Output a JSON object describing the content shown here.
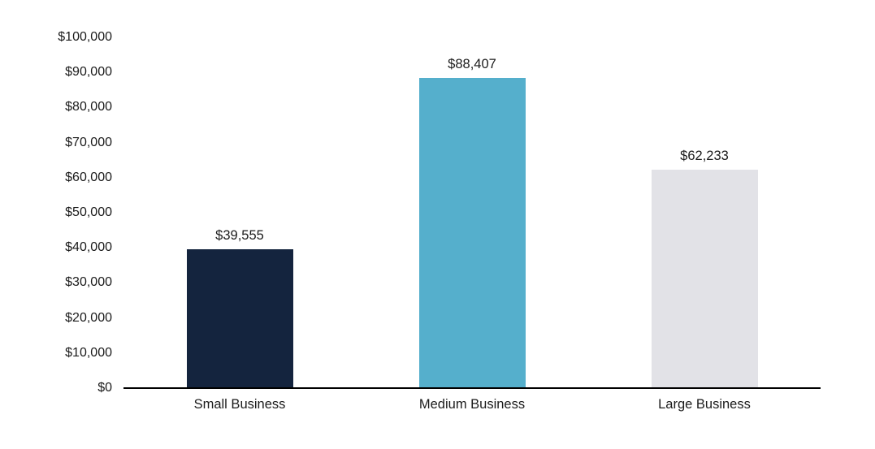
{
  "chart_data": {
    "type": "bar",
    "title": "",
    "xlabel": "",
    "ylabel": "",
    "categories": [
      "Small Business",
      "Medium Business",
      "Large Business"
    ],
    "values": [
      39555,
      88407,
      62233
    ],
    "value_labels": [
      "$39,555",
      "$88,407",
      "$62,233"
    ],
    "bar_colors": [
      "#14243E",
      "#55AFCC",
      "#E2E2E7"
    ],
    "ylim": [
      0,
      100000
    ],
    "yticks": [
      {
        "value": 0,
        "label": "$0"
      },
      {
        "value": 10000,
        "label": "$10,000"
      },
      {
        "value": 20000,
        "label": "$20,000"
      },
      {
        "value": 30000,
        "label": "$30,000"
      },
      {
        "value": 40000,
        "label": "$40,000"
      },
      {
        "value": 50000,
        "label": "$50,000"
      },
      {
        "value": 60000,
        "label": "$60,000"
      },
      {
        "value": 70000,
        "label": "$70,000"
      },
      {
        "value": 80000,
        "label": "$80,000"
      },
      {
        "value": 90000,
        "label": "$90,000"
      },
      {
        "value": 100000,
        "label": "$100,000"
      }
    ],
    "grid": false,
    "legend": false,
    "axis_color": "#000000",
    "text_color": "#1B1B1B",
    "background_color": "#FFFFFF"
  }
}
